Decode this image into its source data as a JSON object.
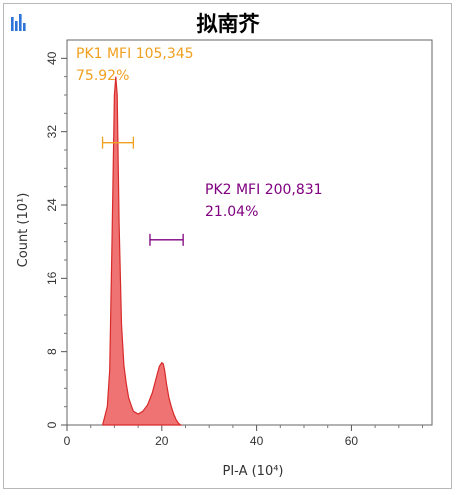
{
  "chart_data": {
    "type": "area",
    "title": "拟南芥",
    "xlabel": "PI-A",
    "x_unit": "(10⁴)",
    "ylabel": "Count",
    "y_unit": "(10¹)",
    "xlim": [
      0,
      77
    ],
    "ylim": [
      0,
      42
    ],
    "x_ticks": [
      0,
      20,
      40,
      60
    ],
    "y_ticks": [
      0,
      8,
      16,
      24,
      32,
      40
    ],
    "x_tick_labels": [
      "0",
      "20",
      "40",
      "60"
    ],
    "y_tick_labels": [
      "0",
      "8",
      "16",
      "24",
      "32",
      "40"
    ],
    "series": [
      {
        "fill": "#ee6b6b",
        "stroke": "#d82a2a",
        "x": [
          7.5,
          8.5,
          9.0,
          9.5,
          10.0,
          10.3,
          10.6,
          11.0,
          11.5,
          12.0,
          12.5,
          13.0,
          13.5,
          14.0,
          15.0,
          16.0,
          17.0,
          18.0,
          19.0,
          19.5,
          20.0,
          20.3,
          20.6,
          21.0,
          21.5,
          22.0,
          22.5,
          23.0,
          23.5,
          24.0
        ],
        "y": [
          0,
          2,
          6,
          20,
          36,
          38,
          36,
          22,
          11,
          6.5,
          4.5,
          3.0,
          2.2,
          1.5,
          1.2,
          1.5,
          2.2,
          3.5,
          5.5,
          6.4,
          6.8,
          6.7,
          6.0,
          4.5,
          3.0,
          2.0,
          1.2,
          0.6,
          0.2,
          0
        ]
      }
    ],
    "gates": [
      {
        "label": "PK1 MFI 105,345",
        "percent": "75.92%",
        "color": "#f0a020",
        "range": [
          7.5,
          14.0
        ],
        "y": 30.8
      },
      {
        "label": "PK2 MFI 200,831",
        "percent": "21.04%",
        "color": "#800080",
        "range": [
          17.5,
          24.5
        ],
        "y": 20.2
      }
    ]
  },
  "toolbar": {
    "icon": "bar-chart-icon",
    "icon_color": "#2d73d8"
  }
}
